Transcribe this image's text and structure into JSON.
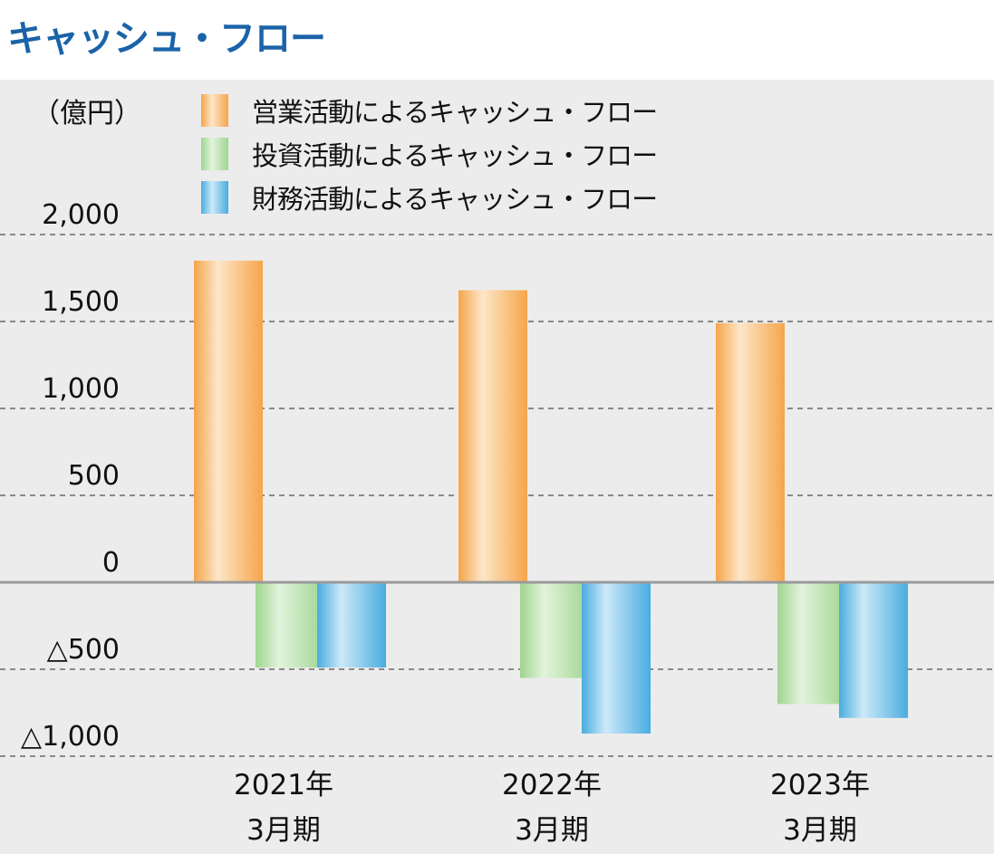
{
  "title": "キャッシュ・フロー",
  "chart_data": {
    "type": "bar",
    "unit_label": "（億円）",
    "categories": [
      [
        "2021年",
        "3月期"
      ],
      [
        "2022年",
        "3月期"
      ],
      [
        "2023年",
        "3月期"
      ]
    ],
    "series": [
      {
        "name": "営業活動によるキャッシュ・フロー",
        "values": [
          1850,
          1680,
          1490
        ],
        "color": "#f5a54a",
        "color_light": "#fde6c8"
      },
      {
        "name": "投資活動によるキャッシュ・フロー",
        "values": [
          -490,
          -550,
          -700
        ],
        "color": "#9fd58f",
        "color_light": "#e3f3dc"
      },
      {
        "name": "財務活動によるキャッシュ・フロー",
        "values": [
          -490,
          -870,
          -780
        ],
        "color": "#49ace0",
        "color_light": "#cde9f8"
      }
    ],
    "yticks": [
      {
        "value": 2000,
        "label": "2,000"
      },
      {
        "value": 1500,
        "label": "1,500"
      },
      {
        "value": 1000,
        "label": "1,000"
      },
      {
        "value": 500,
        "label": "500"
      },
      {
        "value": 0,
        "label": "0"
      },
      {
        "value": -500,
        "label": "△500"
      },
      {
        "value": -1000,
        "label": "△1,000"
      }
    ],
    "ylim": [
      -1000,
      2000
    ],
    "grid": true,
    "legend_position": "top"
  }
}
